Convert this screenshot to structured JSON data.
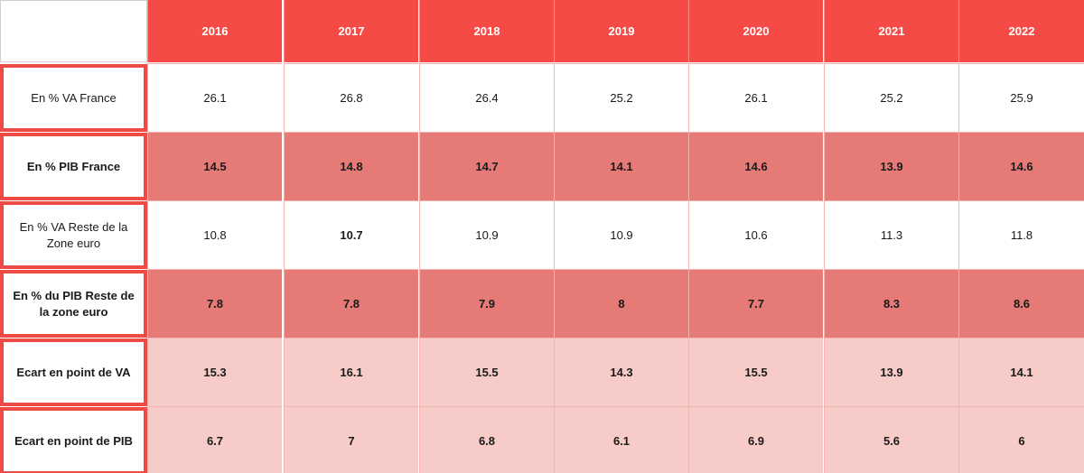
{
  "chart_data": {
    "type": "table",
    "columns": [
      "2016",
      "2017",
      "2018",
      "2019",
      "2020",
      "2021",
      "2022"
    ],
    "rows": [
      {
        "label": "En % VA France",
        "values": [
          "26.1",
          "26.8",
          "26.4",
          "25.2",
          "26.1",
          "25.2",
          "25.9"
        ],
        "bold": false,
        "bold_cells": [],
        "shade": "white"
      },
      {
        "label": "En % PIB France",
        "values": [
          "14.5",
          "14.8",
          "14.7",
          "14.1",
          "14.6",
          "13.9",
          "14.6"
        ],
        "bold": true,
        "bold_cells": [],
        "shade": "dark"
      },
      {
        "label": "En % VA Reste de la Zone euro",
        "values": [
          "10.8",
          "10.7",
          "10.9",
          "10.9",
          "10.6",
          "11.3",
          "11.8"
        ],
        "bold": false,
        "bold_cells": [
          1
        ],
        "shade": "white"
      },
      {
        "label": "En % du PIB Reste de la zone euro",
        "values": [
          "7.8",
          "7.8",
          "7.9",
          "8",
          "7.7",
          "8.3",
          "8.6"
        ],
        "bold": true,
        "bold_cells": [],
        "shade": "dark"
      },
      {
        "label": "Ecart en point de VA",
        "values": [
          "15.3",
          "16.1",
          "15.5",
          "14.3",
          "15.5",
          "13.9",
          "14.1"
        ],
        "bold": true,
        "bold_cells": [],
        "shade": "light"
      },
      {
        "label": "Ecart en point de PIB",
        "values": [
          "6.7",
          "7",
          "6.8",
          "6.1",
          "6.9",
          "5.6",
          "6"
        ],
        "bold": true,
        "bold_cells": [],
        "shade": "light"
      }
    ],
    "colors": {
      "header": "#f54a45",
      "row_label_border": "#ef4b46",
      "dark_row": "#e57a76",
      "light_row": "#f6cbc8",
      "white_row": "#ffffff"
    }
  }
}
